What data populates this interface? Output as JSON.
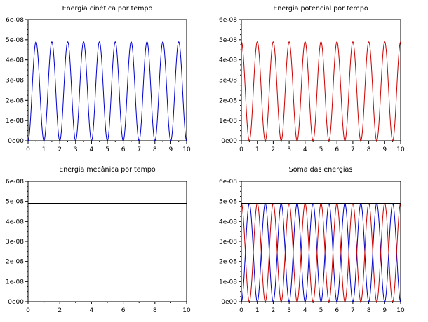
{
  "figure": {
    "background": "#ffffff"
  },
  "colors": {
    "blue": "#0000cc",
    "red": "#cc0000",
    "black": "#000000"
  },
  "chart_data": [
    {
      "type": "line",
      "title": "Energia cinética por tempo",
      "xlim": [
        0,
        10
      ],
      "ylim": [
        0,
        6e-08
      ],
      "x_ticks": [
        0,
        1,
        2,
        3,
        4,
        5,
        6,
        7,
        8,
        9,
        10
      ],
      "x_tick_labels": [
        "0",
        "1",
        "2",
        "3",
        "4",
        "5",
        "6",
        "7",
        "8",
        "9",
        "10"
      ],
      "y_ticks": [
        0,
        1e-08,
        2e-08,
        3e-08,
        4e-08,
        5e-08,
        6e-08
      ],
      "y_tick_labels": [
        "0e00",
        "1e-08",
        "2e-08",
        "3e-08",
        "4e-08",
        "5e-08",
        "6e-08"
      ],
      "grid": false,
      "series": [
        {
          "kind": "sin2",
          "amplitude": 4.9e-08,
          "period": 1.0,
          "phase": 0.0,
          "color": "#0000cc"
        }
      ]
    },
    {
      "type": "line",
      "title": "Energia potencial por tempo",
      "xlim": [
        0,
        10
      ],
      "ylim": [
        0,
        6e-08
      ],
      "x_ticks": [
        0,
        1,
        2,
        3,
        4,
        5,
        6,
        7,
        8,
        9,
        10
      ],
      "x_tick_labels": [
        "0",
        "1",
        "2",
        "3",
        "4",
        "5",
        "6",
        "7",
        "8",
        "9",
        "10"
      ],
      "y_ticks": [
        0,
        1e-08,
        2e-08,
        3e-08,
        4e-08,
        5e-08,
        6e-08
      ],
      "y_tick_labels": [
        "0e00",
        "1e-08",
        "2e-08",
        "3e-08",
        "4e-08",
        "5e-08",
        "6e-08"
      ],
      "grid": false,
      "series": [
        {
          "kind": "cos2",
          "amplitude": 4.9e-08,
          "period": 1.0,
          "phase": 0.0,
          "color": "#cc0000"
        }
      ]
    },
    {
      "type": "line",
      "title": "Energia mecânica por tempo",
      "xlim": [
        0,
        10
      ],
      "ylim": [
        0,
        6e-08
      ],
      "x_ticks": [
        0,
        2,
        4,
        6,
        8,
        10
      ],
      "x_tick_labels": [
        "0",
        "2",
        "4",
        "6",
        "8",
        "10"
      ],
      "y_ticks": [
        0,
        1e-08,
        2e-08,
        3e-08,
        4e-08,
        5e-08,
        6e-08
      ],
      "y_tick_labels": [
        "0e00",
        "1e-08",
        "2e-08",
        "3e-08",
        "4e-08",
        "5e-08",
        "6e-08"
      ],
      "grid": false,
      "series": [
        {
          "kind": "const",
          "amplitude": 4.9e-08,
          "color": "#000000"
        }
      ]
    },
    {
      "type": "line",
      "title": "Soma das energias",
      "xlim": [
        0,
        10
      ],
      "ylim": [
        0,
        6e-08
      ],
      "x_ticks": [
        0,
        1,
        2,
        3,
        4,
        5,
        6,
        7,
        8,
        9,
        10
      ],
      "x_tick_labels": [
        "0",
        "1",
        "2",
        "3",
        "4",
        "5",
        "6",
        "7",
        "8",
        "9",
        "10"
      ],
      "y_ticks": [
        0,
        1e-08,
        2e-08,
        3e-08,
        4e-08,
        5e-08,
        6e-08
      ],
      "y_tick_labels": [
        "0e00",
        "1e-08",
        "2e-08",
        "3e-08",
        "4e-08",
        "5e-08",
        "6e-08"
      ],
      "grid": false,
      "series": [
        {
          "kind": "sin2",
          "amplitude": 4.9e-08,
          "period": 1.0,
          "phase": 0.0,
          "color": "#0000cc"
        },
        {
          "kind": "cos2",
          "amplitude": 4.9e-08,
          "period": 1.0,
          "phase": 0.0,
          "color": "#cc0000"
        },
        {
          "kind": "const",
          "amplitude": 4.9e-08,
          "color": "#000000"
        }
      ]
    }
  ]
}
